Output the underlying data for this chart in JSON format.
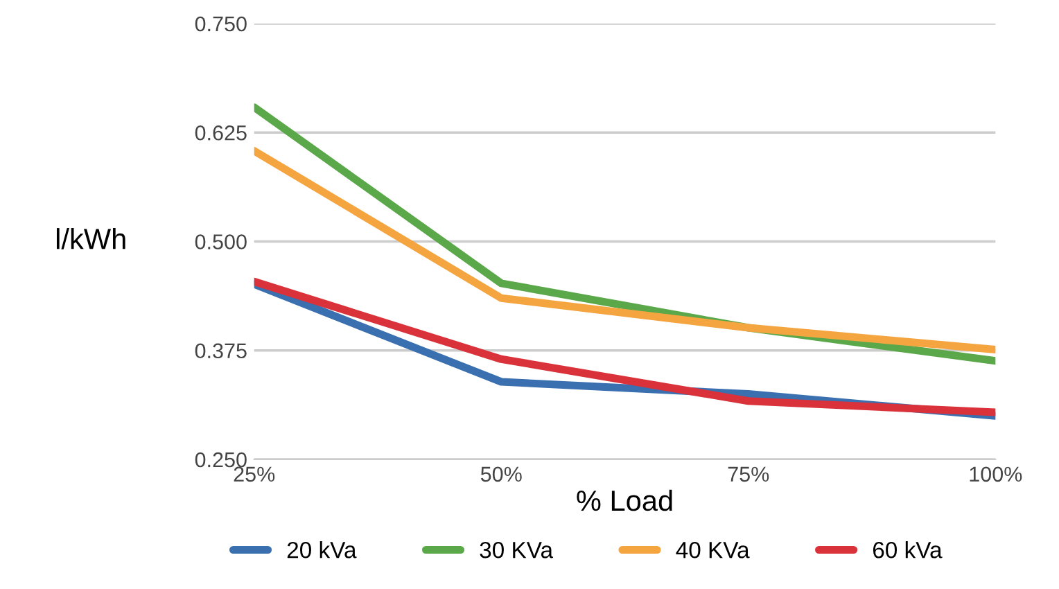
{
  "chart_data": {
    "type": "line",
    "xlabel": "% Load",
    "ylabel": "l/kWh",
    "categories": [
      "25%",
      "50%",
      "75%",
      "100%"
    ],
    "series": [
      {
        "name": "20 kVa",
        "color": "#3a6fb0",
        "values": [
          0.451,
          0.339,
          0.325,
          0.3
        ]
      },
      {
        "name": "30 KVa",
        "color": "#5ba84a",
        "values": [
          0.654,
          0.452,
          0.401,
          0.363
        ]
      },
      {
        "name": "40 KVa",
        "color": "#f5a540",
        "values": [
          0.604,
          0.435,
          0.401,
          0.376
        ]
      },
      {
        "name": "60 kVa",
        "color": "#d9323a",
        "values": [
          0.454,
          0.365,
          0.317,
          0.304
        ]
      }
    ],
    "ylim": [
      0.25,
      0.75
    ],
    "yticks": [
      {
        "value": 0.25,
        "label": "0.250"
      },
      {
        "value": 0.375,
        "label": "0.375"
      },
      {
        "value": 0.5,
        "label": "0.500"
      },
      {
        "value": 0.625,
        "label": "0.625"
      },
      {
        "value": 0.75,
        "label": "0.750"
      }
    ],
    "grid": "y",
    "legend": "bottom",
    "marker": "none",
    "line_style": "solid"
  }
}
